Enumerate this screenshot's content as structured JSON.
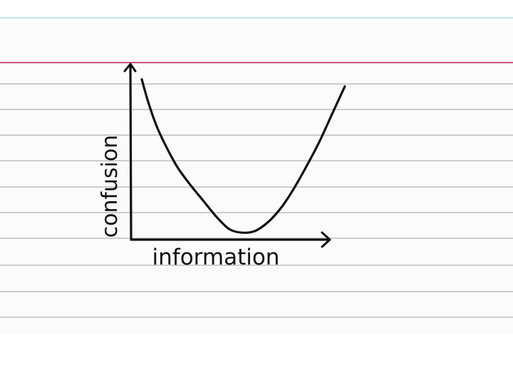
{
  "colors": {
    "paper": "#fbfbfb",
    "margin_line": "#c9547a",
    "ruled_line": "#b9bec4",
    "ink": "#111111"
  },
  "chart_data": {
    "type": "line",
    "title": "",
    "xlabel": "information",
    "ylabel": "confusion",
    "grid": false,
    "legend": "none",
    "series": [
      {
        "name": "",
        "shape": "u-curve",
        "x": [
          0.05,
          0.08,
          0.12,
          0.17,
          0.22,
          0.28,
          0.34,
          0.4,
          0.46,
          0.52,
          0.58,
          0.64,
          0.7,
          0.76,
          0.82,
          0.88,
          0.94,
          1.0
        ],
        "y": [
          0.92,
          0.79,
          0.65,
          0.52,
          0.41,
          0.31,
          0.22,
          0.13,
          0.06,
          0.04,
          0.05,
          0.1,
          0.18,
          0.29,
          0.42,
          0.56,
          0.72,
          0.88
        ]
      }
    ],
    "xlim": [
      0,
      1
    ],
    "ylim": [
      0,
      1
    ]
  }
}
